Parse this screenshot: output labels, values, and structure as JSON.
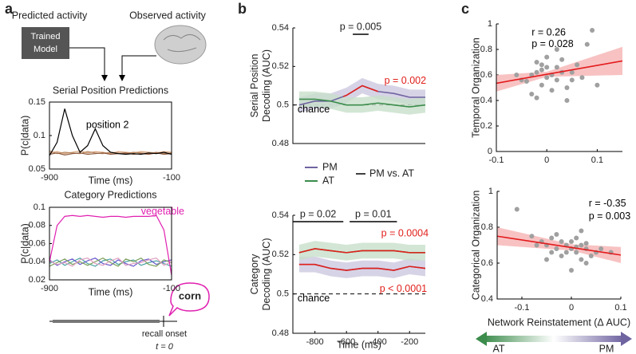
{
  "diagram": {
    "panel_labels": [
      "a",
      "b",
      "c"
    ],
    "predicted": "Predicted activity",
    "observed": "Observed activity",
    "model": [
      "Trained",
      "Model"
    ],
    "word": "corn",
    "onset": "recall onset",
    "t0": "t = 0",
    "arrow_left": "AT",
    "arrow_right": "PM"
  },
  "chart_data": [
    {
      "type": "line",
      "title": "Serial Position Predictions",
      "xlabel": "Time (ms)",
      "ylabel": [
        "P(c|data)"
      ],
      "frame": true,
      "xlim": [
        -900,
        -100
      ],
      "xticks": [
        -900,
        -100
      ],
      "ylim": [
        0.05,
        0.15
      ],
      "yticks": [
        0.05,
        0.1,
        0.15
      ],
      "x": [
        -900,
        -850,
        -800,
        -750,
        -700,
        -650,
        -600,
        -550,
        -500,
        -450,
        -400,
        -350,
        -300,
        -250,
        -200,
        -150,
        -100
      ],
      "series": [
        {
          "color": "#d9a680",
          "values": [
            0.074,
            0.076,
            0.073,
            0.075,
            0.077,
            0.074,
            0.076,
            0.075,
            0.073,
            0.076,
            0.075,
            0.074,
            0.076,
            0.075,
            0.074,
            0.076,
            0.075
          ]
        },
        {
          "color": "#b7845c",
          "values": [
            0.077,
            0.073,
            0.075,
            0.074,
            0.073,
            0.076,
            0.074,
            0.073,
            0.075,
            0.074,
            0.073,
            0.075,
            0.074,
            0.073,
            0.075,
            0.073,
            0.074
          ]
        },
        {
          "color": "#8c5a3c",
          "values": [
            0.072,
            0.074,
            0.071,
            0.073,
            0.074,
            0.072,
            0.073,
            0.074,
            0.072,
            0.073,
            0.074,
            0.072,
            0.073,
            0.072,
            0.074,
            0.072,
            0.073
          ]
        },
        {
          "color": "#000000",
          "values": [
            0.07,
            0.09,
            0.14,
            0.1,
            0.075,
            0.085,
            0.11,
            0.085,
            0.075,
            0.073,
            0.072,
            0.073,
            0.072,
            0.074,
            0.073,
            0.075,
            0.072
          ]
        }
      ],
      "annotations": [
        {
          "text": "position 2",
          "x": -660,
          "y": 0.115,
          "color": "#000000"
        }
      ]
    },
    {
      "type": "line",
      "title": "Category Predictions",
      "xlabel": "Time (ms)",
      "ylabel": [
        "P(c|data)"
      ],
      "frame": true,
      "xlim": [
        -900,
        -100
      ],
      "xticks": [
        -900,
        -100
      ],
      "ylim": [
        0.02,
        0.1
      ],
      "yticks": [
        0.02,
        0.04,
        0.06,
        0.08,
        0.1
      ],
      "x": [
        -900,
        -850,
        -800,
        -750,
        -700,
        -650,
        -600,
        -550,
        -500,
        -450,
        -400,
        -350,
        -300,
        -250,
        -200,
        -150,
        -100
      ],
      "series": [
        {
          "color": "#4aa3a3",
          "values": [
            0.038,
            0.042,
            0.036,
            0.04,
            0.044,
            0.038,
            0.035,
            0.041,
            0.043,
            0.037,
            0.04,
            0.042,
            0.036,
            0.039,
            0.041,
            0.038,
            0.035
          ]
        },
        {
          "color": "#6a5acd",
          "values": [
            0.042,
            0.036,
            0.04,
            0.043,
            0.037,
            0.041,
            0.044,
            0.038,
            0.036,
            0.042,
            0.038,
            0.035,
            0.041,
            0.043,
            0.037,
            0.04,
            0.042
          ]
        },
        {
          "color": "#7aa05a",
          "values": [
            0.035,
            0.039,
            0.043,
            0.037,
            0.04,
            0.036,
            0.04,
            0.044,
            0.039,
            0.035,
            0.043,
            0.04,
            0.044,
            0.037,
            0.035,
            0.042,
            0.039
          ]
        },
        {
          "color": "#e0a0c0",
          "values": [
            0.041,
            0.037,
            0.039,
            0.035,
            0.042,
            0.044,
            0.038,
            0.036,
            0.041,
            0.044,
            0.036,
            0.038,
            0.039,
            0.042,
            0.044,
            0.036,
            0.04
          ]
        },
        {
          "color": "#e020b0",
          "values": [
            0.04,
            0.08,
            0.09,
            0.091,
            0.09,
            0.091,
            0.09,
            0.089,
            0.09,
            0.09,
            0.089,
            0.09,
            0.09,
            0.09,
            0.091,
            0.075,
            0.025
          ]
        }
      ],
      "annotations": [
        {
          "text": "vegetable",
          "x": -300,
          "y": 0.095,
          "color": "#e020b0"
        }
      ]
    },
    {
      "type": "line",
      "ylabel": [
        "Serial Position",
        "Decoding (AUC)"
      ],
      "xlim": [
        -940,
        -100
      ],
      "ylim": [
        0.48,
        0.54
      ],
      "yticks": [
        0.48,
        0.5,
        0.52,
        0.54
      ],
      "chance": 0.5,
      "x": [
        -900,
        -800,
        -700,
        -600,
        -500,
        -400,
        -300,
        -200,
        -100
      ],
      "series": [
        {
          "name": "PM",
          "color": "#6f63a0",
          "band_color": "#cdc8e0",
          "values": [
            0.5,
            0.502,
            0.502,
            0.505,
            0.51,
            0.507,
            0.506,
            0.504,
            0.504
          ],
          "error": [
            0.004,
            0.004,
            0.004,
            0.004,
            0.004,
            0.004,
            0.004,
            0.004,
            0.004
          ],
          "sig_x": [
            -620,
            -400
          ]
        },
        {
          "name": "AT",
          "color": "#3c8c4c",
          "band_color": "#c8e0cb",
          "values": [
            0.503,
            0.503,
            0.502,
            0.5,
            0.5,
            0.501,
            0.5,
            0.499,
            0.5
          ],
          "error": [
            0.004,
            0.004,
            0.004,
            0.004,
            0.004,
            0.004,
            0.004,
            0.004,
            0.004
          ]
        }
      ],
      "sig_color": "#e0201b",
      "sig_legend": "PM vs. AT",
      "sig_windows": [
        {
          "label": "p = 0.005",
          "x": [
            -560,
            -460
          ]
        }
      ],
      "annotations": [
        {
          "text": "p = 0.002",
          "x": -360,
          "y": 0.5125,
          "color": "#e0201b"
        },
        {
          "text": "chance",
          "x": -910,
          "y": 0.4975,
          "color": "#000000"
        }
      ]
    },
    {
      "type": "line",
      "ylabel": [
        "Category",
        "Decoding (AUC)"
      ],
      "xlabel": "Time (ms)",
      "xlim": [
        -940,
        -100
      ],
      "xticks": [
        -800,
        -600,
        -400,
        -200
      ],
      "ylim": [
        0.48,
        0.54
      ],
      "yticks": [
        0.48,
        0.5,
        0.52,
        0.54
      ],
      "chance": 0.5,
      "x": [
        -900,
        -800,
        -700,
        -600,
        -500,
        -400,
        -300,
        -200,
        -100
      ],
      "series": [
        {
          "color": "#6f63a0",
          "band_color": "#cdc8e0",
          "values": [
            0.515,
            0.515,
            0.513,
            0.512,
            0.513,
            0.513,
            0.512,
            0.514,
            0.513
          ],
          "error": [
            0.004,
            0.004,
            0.004,
            0.004,
            0.004,
            0.004,
            0.004,
            0.004,
            0.004
          ],
          "sig_x": [
            -940,
            -100
          ]
        },
        {
          "color": "#3c8c4c",
          "band_color": "#c8e0cb",
          "values": [
            0.521,
            0.523,
            0.522,
            0.521,
            0.522,
            0.522,
            0.522,
            0.521,
            0.521
          ],
          "error": [
            0.004,
            0.004,
            0.004,
            0.004,
            0.004,
            0.004,
            0.004,
            0.004,
            0.004
          ],
          "sig_x": [
            -940,
            -100
          ]
        }
      ],
      "sig_color": "#e0201b",
      "sig_windows": [
        {
          "label": "p = 0.02",
          "x": [
            -940,
            -620
          ]
        },
        {
          "label": "p = 0.01",
          "x": [
            -580,
            -280
          ]
        }
      ],
      "annotations": [
        {
          "text": "p = 0.0004",
          "x": -380,
          "y": 0.5305,
          "color": "#e0201b"
        },
        {
          "text": "p < 0.0001",
          "x": -390,
          "y": 0.5025,
          "color": "#e0201b"
        },
        {
          "text": "chance",
          "x": -910,
          "y": 0.4975,
          "color": "#000000"
        }
      ]
    },
    {
      "type": "scatter",
      "ylabel": [
        "Temporal Organization"
      ],
      "color": "#a0a0a0",
      "xlim": [
        -0.1,
        0.15
      ],
      "xticks": [
        -0.1,
        0,
        0.1
      ],
      "ylim": [
        0,
        1
      ],
      "yticks": [
        0,
        0.2,
        0.4,
        0.6,
        0.8,
        1
      ],
      "x": [
        -0.05,
        -0.03,
        -0.02,
        -0.01,
        0,
        0.01,
        0.02,
        0.03,
        -0.04,
        -0.02,
        0,
        0.02,
        0.04,
        0.05,
        0.06,
        -0.03,
        -0.01,
        0.01,
        0.03,
        0.08,
        0.09,
        -0.06,
        0,
        0.02,
        -0.02,
        0.04,
        0.07,
        0.1,
        -0.01,
        0.05
      ],
      "values": [
        0.56,
        0.6,
        0.62,
        0.64,
        0.58,
        0.6,
        0.66,
        0.62,
        0.55,
        0.7,
        0.74,
        0.56,
        0.5,
        0.62,
        0.68,
        0.45,
        0.52,
        0.48,
        0.72,
        0.84,
        0.95,
        0.6,
        0.66,
        0.8,
        0.42,
        0.4,
        0.58,
        0.52,
        0.68,
        0.56
      ],
      "fit": {
        "color": "#e31a1c",
        "band_color": "#f6b3b3",
        "x": [
          -0.1,
          0,
          0.15
        ],
        "values": [
          0.535,
          0.605,
          0.71
        ],
        "lower": [
          0.47,
          0.585,
          0.6
        ],
        "upper": [
          0.6,
          0.625,
          0.82
        ]
      },
      "annotations": [
        {
          "text": "r = 0.26",
          "x": -0.03,
          "y": 0.93,
          "color": "#000000"
        },
        {
          "text": "p = 0.028",
          "x": -0.03,
          "y": 0.84,
          "color": "#000000"
        }
      ]
    },
    {
      "type": "scatter",
      "ylabel": [
        "Categorical Organization"
      ],
      "xlabel": "Network Reinstatement (Δ AUC)",
      "color": "#a0a0a0",
      "xlim": [
        -0.15,
        0.1
      ],
      "xticks": [
        -0.1,
        0,
        0.1
      ],
      "ylim": [
        0.4,
        1
      ],
      "yticks": [
        0.4,
        0.6,
        0.8,
        1
      ],
      "x": [
        -0.11,
        -0.08,
        -0.06,
        -0.05,
        -0.04,
        -0.03,
        -0.02,
        -0.01,
        0,
        0.01,
        0.02,
        0.03,
        0.04,
        -0.03,
        -0.02,
        0,
        0.01,
        0.02,
        -0.01,
        0.03,
        0.06,
        0.08,
        -0.05,
        0,
        0.02,
        -0.07,
        0.01,
        -0.04,
        0.03,
        0.05
      ],
      "values": [
        0.9,
        0.75,
        0.72,
        0.7,
        0.74,
        0.68,
        0.72,
        0.7,
        0.68,
        0.66,
        0.7,
        0.68,
        0.64,
        0.76,
        0.64,
        0.72,
        0.74,
        0.62,
        0.66,
        0.6,
        0.68,
        0.66,
        0.62,
        0.56,
        0.78,
        0.7,
        0.69,
        0.66,
        0.71,
        0.66
      ],
      "fit": {
        "color": "#e31a1c",
        "band_color": "#f6b3b3",
        "x": [
          -0.15,
          0,
          0.1
        ],
        "values": [
          0.75,
          0.687,
          0.645
        ],
        "lower": [
          0.7,
          0.67,
          0.6
        ],
        "upper": [
          0.8,
          0.705,
          0.69
        ]
      },
      "annotations": [
        {
          "text": "r = -0.35",
          "x": 0.035,
          "y": 0.93,
          "color": "#000000"
        },
        {
          "text": "p = 0.003",
          "x": 0.035,
          "y": 0.86,
          "color": "#000000"
        }
      ]
    }
  ]
}
